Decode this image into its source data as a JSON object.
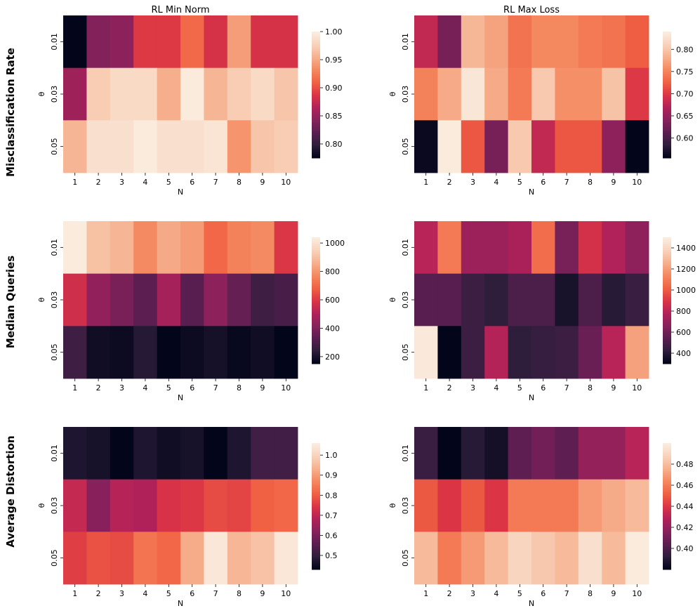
{
  "figure": {
    "column_titles": [
      "RL Min Norm",
      "RL Max Loss"
    ],
    "row_titles": [
      "Misclassification Rate",
      "Median Queries",
      "Average Distortion"
    ]
  },
  "colormap": {
    "name": "rocket",
    "stops": [
      "#03051a",
      "#2e1e3c",
      "#5b1e51",
      "#87215b",
      "#b1215a",
      "#da3445",
      "#f06043",
      "#f4875e",
      "#f6ae8c",
      "#f8d1b9",
      "#faebdd"
    ]
  },
  "chart_data": [
    {
      "type": "heatmap",
      "title": "RL Min Norm",
      "row_title": "Misclassification Rate",
      "xlabel": "N",
      "ylabel": "θ",
      "x": [
        "1",
        "2",
        "3",
        "4",
        "5",
        "6",
        "7",
        "8",
        "9",
        "10"
      ],
      "y": [
        "0.01",
        "0.03",
        "0.05"
      ],
      "values": [
        [
          0.77,
          0.84,
          0.845,
          0.89,
          0.89,
          0.915,
          0.885,
          0.945,
          0.885,
          0.885
        ],
        [
          0.855,
          0.975,
          0.985,
          0.985,
          0.955,
          1.0,
          0.96,
          0.975,
          0.985,
          0.97
        ],
        [
          0.96,
          0.99,
          0.99,
          1.0,
          0.99,
          0.99,
          0.995,
          0.94,
          0.97,
          0.975
        ]
      ],
      "vmin": 0.775,
      "vmax": 1.0,
      "colorbar_ticks": [
        "0.80",
        "0.85",
        "0.90",
        "0.95",
        "1.00"
      ],
      "colorbar_tick_values": [
        0.8,
        0.85,
        0.9,
        0.95,
        1.0
      ]
    },
    {
      "type": "heatmap",
      "title": "RL Max Loss",
      "row_title": "Misclassification Rate",
      "xlabel": "N",
      "ylabel": "θ",
      "x": [
        "1",
        "2",
        "3",
        "4",
        "5",
        "6",
        "7",
        "8",
        "9",
        "10"
      ],
      "y": [
        "0.01",
        "0.03",
        "0.05"
      ],
      "values": [
        [
          0.68,
          0.63,
          0.79,
          0.775,
          0.74,
          0.755,
          0.755,
          0.745,
          0.74,
          0.725
        ],
        [
          0.75,
          0.78,
          0.835,
          0.78,
          0.745,
          0.805,
          0.76,
          0.76,
          0.8,
          0.7
        ],
        [
          0.56,
          0.84,
          0.72,
          0.63,
          0.805,
          0.68,
          0.72,
          0.72,
          0.645,
          0.555
        ]
      ],
      "vmin": 0.555,
      "vmax": 0.84,
      "colorbar_ticks": [
        "0.60",
        "0.65",
        "0.70",
        "0.75",
        "0.80"
      ],
      "colorbar_tick_values": [
        0.6,
        0.65,
        0.7,
        0.75,
        0.8
      ]
    },
    {
      "type": "heatmap",
      "title": "",
      "row_title": "Median Queries",
      "xlabel": "N",
      "ylabel": "θ",
      "x": [
        "1",
        "2",
        "3",
        "4",
        "5",
        "6",
        "7",
        "8",
        "9",
        "10"
      ],
      "y": [
        "0.01",
        "0.03",
        "0.05"
      ],
      "values": [
        [
          1040,
          910,
          880,
          780,
          850,
          820,
          700,
          760,
          780,
          600
        ],
        [
          570,
          440,
          390,
          330,
          480,
          320,
          430,
          350,
          270,
          290
        ],
        [
          270,
          180,
          170,
          220,
          150,
          170,
          190,
          160,
          180,
          150
        ]
      ],
      "vmin": 150,
      "vmax": 1040,
      "colorbar_ticks": [
        "200",
        "400",
        "600",
        "800",
        "1000"
      ],
      "colorbar_tick_values": [
        200,
        400,
        600,
        800,
        1000
      ]
    },
    {
      "type": "heatmap",
      "title": "",
      "row_title": "Median Queries",
      "xlabel": "N",
      "ylabel": "θ",
      "x": [
        "1",
        "2",
        "3",
        "4",
        "5",
        "6",
        "7",
        "8",
        "9",
        "10"
      ],
      "y": [
        "0.01",
        "0.03",
        "0.05"
      ],
      "values": [
        [
          800,
          1100,
          720,
          720,
          760,
          1060,
          620,
          880,
          780,
          680
        ],
        [
          530,
          530,
          460,
          420,
          500,
          500,
          360,
          500,
          400,
          450
        ],
        [
          1490,
          300,
          460,
          790,
          420,
          440,
          460,
          580,
          800,
          1220
        ]
      ],
      "vmin": 300,
      "vmax": 1500,
      "colorbar_ticks": [
        "400",
        "600",
        "800",
        "1000",
        "1200",
        "1400"
      ],
      "colorbar_tick_values": [
        400,
        600,
        800,
        1000,
        1200,
        1400
      ]
    },
    {
      "type": "heatmap",
      "title": "",
      "row_title": "Average Distortion",
      "xlabel": "N",
      "ylabel": "θ",
      "x": [
        "1",
        "2",
        "3",
        "4",
        "5",
        "6",
        "7",
        "8",
        "9",
        "10"
      ],
      "y": [
        "0.01",
        "0.03",
        "0.05"
      ],
      "values": [
        [
          0.47,
          0.46,
          0.43,
          0.47,
          0.45,
          0.46,
          0.43,
          0.47,
          0.52,
          0.52
        ],
        [
          0.71,
          0.62,
          0.69,
          0.68,
          0.74,
          0.75,
          0.78,
          0.77,
          0.81,
          0.82
        ],
        [
          0.76,
          0.79,
          0.78,
          0.84,
          0.82,
          0.93,
          1.05,
          0.95,
          0.97,
          1.05
        ]
      ],
      "vmin": 0.43,
      "vmax": 1.06,
      "colorbar_ticks": [
        "0.5",
        "0.6",
        "0.7",
        "0.8",
        "0.9",
        "1.0"
      ],
      "colorbar_tick_values": [
        0.5,
        0.6,
        0.7,
        0.8,
        0.9,
        1.0
      ]
    },
    {
      "type": "heatmap",
      "title": "",
      "row_title": "Average Distortion",
      "xlabel": "N",
      "ylabel": "θ",
      "x": [
        "1",
        "2",
        "3",
        "4",
        "5",
        "6",
        "7",
        "8",
        "9",
        "10"
      ],
      "y": [
        "0.01",
        "0.03",
        "0.05"
      ],
      "values": [
        [
          0.395,
          0.38,
          0.39,
          0.385,
          0.405,
          0.41,
          0.405,
          0.42,
          0.42,
          0.43
        ],
        [
          0.45,
          0.44,
          0.45,
          0.44,
          0.46,
          0.46,
          0.46,
          0.47,
          0.475,
          0.48
        ],
        [
          0.48,
          0.46,
          0.47,
          0.48,
          0.49,
          0.485,
          0.48,
          0.495,
          0.48,
          0.5
        ]
      ],
      "vmin": 0.38,
      "vmax": 0.5,
      "colorbar_ticks": [
        "0.40",
        "0.42",
        "0.44",
        "0.46",
        "0.48"
      ],
      "colorbar_tick_values": [
        0.4,
        0.42,
        0.44,
        0.46,
        0.48
      ]
    }
  ]
}
